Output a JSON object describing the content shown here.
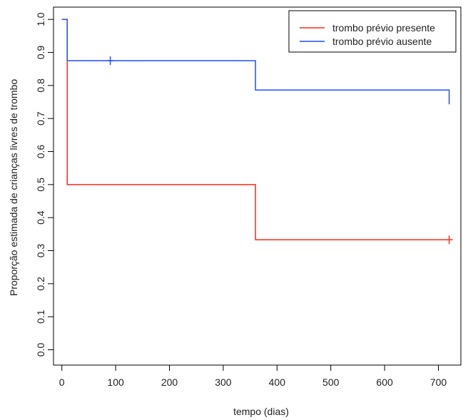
{
  "chart_data": {
    "type": "line",
    "step": true,
    "xlabel": "tempo (dias)",
    "ylabel": "Proporção estimada de crianças livres de trombo",
    "xlim": [
      0,
      720
    ],
    "ylim": [
      0,
      1
    ],
    "xticks": [
      0,
      100,
      200,
      300,
      400,
      500,
      600,
      700
    ],
    "yticks": [
      0.0,
      0.1,
      0.2,
      0.3,
      0.4,
      0.5,
      0.6,
      0.7,
      0.8,
      0.9,
      1.0
    ],
    "ytick_labels": [
      "0.0",
      "0.1",
      "0.2",
      "0.3",
      "0.4",
      "0.5",
      "0.6",
      "0.7",
      "0.8",
      "0.9",
      "1.0"
    ],
    "grid": false,
    "legend_position": "top-right",
    "series": [
      {
        "name": "trombo prévio presente",
        "color": "#ff2a1a",
        "x": [
          0,
          10,
          10,
          360,
          360,
          720
        ],
        "y": [
          1.0,
          1.0,
          0.5,
          0.5,
          0.333,
          0.333
        ],
        "censored": [
          {
            "x": 720,
            "y": 0.333
          }
        ]
      },
      {
        "name": "trombo prévio ausente",
        "color": "#1f4fff",
        "x": [
          0,
          10,
          10,
          360,
          360,
          720,
          720
        ],
        "y": [
          1.0,
          1.0,
          0.875,
          0.875,
          0.786,
          0.786,
          0.743
        ],
        "censored": [
          {
            "x": 90,
            "y": 0.875
          }
        ]
      }
    ]
  }
}
